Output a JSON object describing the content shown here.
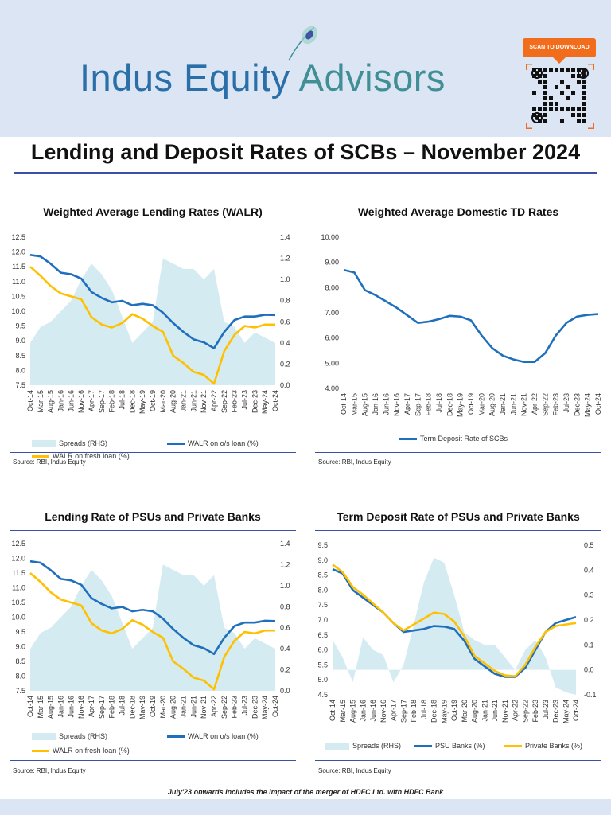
{
  "header": {
    "brand_part1": "Indus Equity",
    "brand_part2": "Advisors",
    "scan_label": "SCAN TO DOWNLOAD"
  },
  "title": "Lending and Deposit Rates of SCBs – November 2024",
  "footnote": "July'23 onwards Includes the impact of the merger of HDFC Ltd. with HDFC Bank",
  "colors": {
    "blue": "#1f6fbd",
    "gold": "#ffc000",
    "spread": "#d5ebf2",
    "rule": "#3b4fa6",
    "orange": "#f26d1b"
  },
  "chart_data": [
    {
      "type": "line+area",
      "title": "Weighted Average Lending Rates (WALR)",
      "source": "Source: RBI, Indus Equity",
      "x": [
        "Oct-14",
        "Mar-15",
        "Aug-15",
        "Jan-16",
        "Jun-16",
        "Nov-16",
        "Apr-17",
        "Sep-17",
        "Feb-18",
        "Jul-18",
        "Dec-18",
        "May-19",
        "Oct-19",
        "Mar-20",
        "Aug-20",
        "Jan-21",
        "Jun-21",
        "Nov-21",
        "Apr-22",
        "Sep-22",
        "Feb-23",
        "Jul-23",
        "Dec-23",
        "May-24",
        "Oct-24"
      ],
      "ylim": [
        7.5,
        12.5
      ],
      "yticks": [
        "12.5",
        "12.0",
        "11.5",
        "11.0",
        "10.5",
        "10.0",
        "9.5",
        "9.0",
        "8.5",
        "8.0",
        "7.5"
      ],
      "y2lim": [
        0,
        1.4
      ],
      "y2ticks": [
        "1.4",
        "1.2",
        "1.0",
        "0.8",
        "0.6",
        "0.4",
        "0.2",
        "0.0"
      ],
      "series": [
        {
          "name": "Spreads (RHS)",
          "kind": "area",
          "axis": "right",
          "values": [
            0.4,
            0.55,
            0.6,
            0.7,
            0.8,
            1.0,
            1.15,
            1.05,
            0.9,
            0.65,
            0.4,
            0.5,
            0.6,
            1.2,
            1.15,
            1.1,
            1.1,
            1.0,
            1.1,
            0.6,
            0.55,
            0.4,
            0.5,
            0.45,
            0.4
          ]
        },
        {
          "name": "WALR on o/s loan (%)",
          "kind": "line",
          "axis": "left",
          "color": "#1f6fbd",
          "values": [
            11.9,
            11.85,
            11.6,
            11.3,
            11.25,
            11.1,
            10.65,
            10.45,
            10.3,
            10.35,
            10.2,
            10.25,
            10.2,
            9.95,
            9.6,
            9.3,
            9.05,
            8.95,
            8.75,
            9.3,
            9.7,
            9.82,
            9.82,
            9.88,
            9.87
          ]
        },
        {
          "name": "WALR on fresh loan (%)",
          "kind": "line",
          "axis": "left",
          "color": "#ffc000",
          "values": [
            11.5,
            11.2,
            10.85,
            10.6,
            10.5,
            10.4,
            9.8,
            9.55,
            9.45,
            9.6,
            9.9,
            9.75,
            9.5,
            9.3,
            8.5,
            8.25,
            7.95,
            7.85,
            7.55,
            8.65,
            9.2,
            9.5,
            9.45,
            9.55,
            9.55
          ]
        }
      ]
    },
    {
      "type": "line",
      "title": "Weighted Average Domestic TD Rates",
      "source": "Source: RBI, Indus Equity",
      "x": [
        "Oct-14",
        "Mar-15",
        "Aug-15",
        "Jan-16",
        "Jun-16",
        "Nov-16",
        "Apr-17",
        "Sep-17",
        "Feb-18",
        "Jul-18",
        "Dec-18",
        "May-19",
        "Oct-19",
        "Mar-20",
        "Aug-20",
        "Jan-21",
        "Jun-21",
        "Nov-21",
        "Apr-22",
        "Sep-22",
        "Feb-23",
        "Jul-23",
        "Dec-23",
        "May-24",
        "Oct-24"
      ],
      "ylim": [
        4,
        10
      ],
      "yticks": [
        "10.00",
        "9.00",
        "8.00",
        "7.00",
        "6.00",
        "5.00",
        "4.00"
      ],
      "series": [
        {
          "name": "Term Deposit Rate of SCBs",
          "kind": "line",
          "axis": "left",
          "color": "#1f6fbd",
          "values": [
            8.7,
            8.6,
            7.9,
            7.7,
            7.45,
            7.2,
            6.9,
            6.6,
            6.65,
            6.75,
            6.88,
            6.85,
            6.7,
            6.1,
            5.6,
            5.3,
            5.15,
            5.05,
            5.05,
            5.4,
            6.1,
            6.6,
            6.85,
            6.92,
            6.95
          ]
        }
      ]
    },
    {
      "type": "line+area",
      "title": "Lending Rate of PSUs and Private Banks",
      "source": "Source: RBI, Indus Equity",
      "x": [
        "Oct-14",
        "Mar-15",
        "Aug-15",
        "Jan-16",
        "Jun-16",
        "Nov-16",
        "Apr-17",
        "Sep-17",
        "Feb-18",
        "Jul-18",
        "Dec-18",
        "May-19",
        "Oct-19",
        "Mar-20",
        "Aug-20",
        "Jan-21",
        "Jun-21",
        "Nov-21",
        "Apr-22",
        "Sep-22",
        "Feb-23",
        "Jul-23",
        "Dec-23",
        "May-24",
        "Oct-24"
      ],
      "ylim": [
        7.5,
        12.5
      ],
      "yticks": [
        "12.5",
        "12.0",
        "11.5",
        "11.0",
        "10.5",
        "10.0",
        "9.5",
        "9.0",
        "8.5",
        "8.0",
        "7.5"
      ],
      "y2lim": [
        0,
        1.4
      ],
      "y2ticks": [
        "1.4",
        "1.2",
        "1.0",
        "0.8",
        "0.6",
        "0.4",
        "0.2",
        "0.0"
      ],
      "series": [
        {
          "name": "Spreads (RHS)",
          "kind": "area",
          "axis": "right",
          "values": [
            0.4,
            0.55,
            0.6,
            0.7,
            0.8,
            1.0,
            1.15,
            1.05,
            0.9,
            0.65,
            0.4,
            0.5,
            0.6,
            1.2,
            1.15,
            1.1,
            1.1,
            1.0,
            1.1,
            0.6,
            0.55,
            0.4,
            0.5,
            0.45,
            0.4
          ]
        },
        {
          "name": "WALR on o/s loan (%)",
          "kind": "line",
          "axis": "left",
          "color": "#1f6fbd",
          "values": [
            11.9,
            11.85,
            11.6,
            11.3,
            11.25,
            11.1,
            10.65,
            10.45,
            10.3,
            10.35,
            10.2,
            10.25,
            10.2,
            9.95,
            9.6,
            9.3,
            9.05,
            8.95,
            8.75,
            9.3,
            9.7,
            9.82,
            9.82,
            9.88,
            9.87
          ]
        },
        {
          "name": "WALR on fresh loan (%)",
          "kind": "line",
          "axis": "left",
          "color": "#ffc000",
          "values": [
            11.5,
            11.2,
            10.85,
            10.6,
            10.5,
            10.4,
            9.8,
            9.55,
            9.45,
            9.6,
            9.9,
            9.75,
            9.5,
            9.3,
            8.5,
            8.25,
            7.95,
            7.85,
            7.55,
            8.65,
            9.2,
            9.5,
            9.45,
            9.55,
            9.55
          ]
        }
      ]
    },
    {
      "type": "line+area",
      "title": "Term Deposit Rate of PSUs and Private Banks",
      "source": "Source: RBI, Indus Equity",
      "x": [
        "Oct-14",
        "Mar-15",
        "Aug-15",
        "Jan-16",
        "Jun-16",
        "Nov-16",
        "Apr-17",
        "Sep-17",
        "Feb-18",
        "Jul-18",
        "Dec-18",
        "May-19",
        "Oct-19",
        "Mar-20",
        "Aug-20",
        "Jan-21",
        "Jun-21",
        "Nov-21",
        "Apr-22",
        "Sep-22",
        "Feb-23",
        "Jul-23",
        "Dec-23",
        "May-24",
        "Oct-24"
      ],
      "ylim": [
        4.5,
        9.5
      ],
      "yticks": [
        "9.5",
        "9.0",
        "8.5",
        "8.0",
        "7.5",
        "7.0",
        "6.5",
        "6.0",
        "5.5",
        "5.0",
        "4.5"
      ],
      "y2lim": [
        -0.1,
        0.5
      ],
      "y2ticks": [
        "0.5",
        "0.4",
        "0.3",
        "0.2",
        "0.1",
        "0.0",
        "-0.1"
      ],
      "series": [
        {
          "name": "Spreads (RHS)",
          "kind": "area",
          "axis": "right",
          "values": [
            0.12,
            0.05,
            -0.05,
            0.13,
            0.08,
            0.06,
            -0.05,
            0.02,
            0.18,
            0.35,
            0.45,
            0.43,
            0.3,
            0.15,
            0.12,
            0.1,
            0.1,
            0.05,
            0.0,
            0.08,
            0.12,
            0.05,
            -0.07,
            -0.09,
            -0.1
          ]
        },
        {
          "name": "PSU Banks (%)",
          "kind": "line",
          "axis": "left",
          "color": "#1f6fbd",
          "values": [
            8.7,
            8.55,
            8.0,
            7.75,
            7.5,
            7.25,
            6.9,
            6.6,
            6.65,
            6.7,
            6.8,
            6.78,
            6.7,
            6.3,
            5.7,
            5.45,
            5.2,
            5.1,
            5.1,
            5.4,
            6.0,
            6.6,
            6.9,
            7.0,
            7.1
          ]
        },
        {
          "name": "Private Banks (%)",
          "kind": "line",
          "axis": "left",
          "color": "#ffc000",
          "values": [
            8.85,
            8.6,
            8.1,
            7.85,
            7.55,
            7.25,
            6.9,
            6.65,
            6.85,
            7.05,
            7.25,
            7.2,
            6.95,
            6.45,
            5.8,
            5.55,
            5.3,
            5.15,
            5.12,
            5.5,
            6.1,
            6.6,
            6.8,
            6.85,
            6.9
          ]
        }
      ]
    }
  ]
}
